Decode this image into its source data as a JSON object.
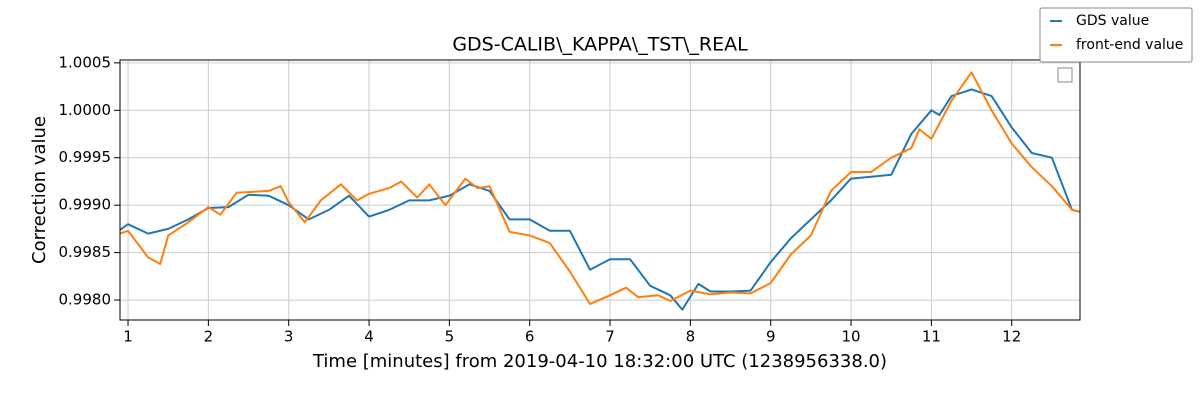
{
  "chart_data": {
    "type": "line",
    "title": "GDS-CALIB\\_KAPPA\\_TST\\_REAL",
    "x_label": "Time [minutes] from 2019-04-10 18:32:00 UTC (1238956338.0)",
    "y_label": "Correction value",
    "xlim": [
      0.9,
      12.85
    ],
    "ylim": [
      0.99779,
      1.00053
    ],
    "xticks": [
      1,
      2,
      3,
      4,
      5,
      6,
      7,
      8,
      9,
      10,
      11,
      12
    ],
    "yticks": [
      {
        "value": 0.998,
        "label": "0.9980"
      },
      0.9985,
      {
        "value": 0.999,
        "label": "0.9990"
      },
      0.9995,
      {
        "value": 1,
        "label": "1.0000"
      },
      1.0005
    ],
    "grid": true,
    "legend": "upper right",
    "series": [
      {
        "name": "GDS value",
        "color": "#1f77b4",
        "x": [
          0.9,
          1.0,
          1.25,
          1.5,
          1.75,
          2.0,
          2.25,
          2.5,
          2.75,
          3.0,
          3.25,
          3.5,
          3.75,
          4.0,
          4.25,
          4.5,
          4.75,
          5.0,
          5.25,
          5.5,
          5.75,
          6.0,
          6.25,
          6.5,
          6.75,
          7.0,
          7.25,
          7.5,
          7.75,
          7.9,
          8.1,
          8.25,
          8.5,
          8.75,
          9.0,
          9.25,
          9.5,
          9.75,
          10.0,
          10.25,
          10.5,
          10.75,
          11.0,
          11.1,
          11.25,
          11.5,
          11.75,
          12.0,
          12.25,
          12.5,
          12.75,
          12.85
        ],
        "values": [
          0.99874,
          0.9988,
          0.9987,
          0.99875,
          0.99885,
          0.99897,
          0.99898,
          0.99911,
          0.9991,
          0.999,
          0.99885,
          0.99895,
          0.9991,
          0.99888,
          0.99895,
          0.99905,
          0.99905,
          0.9991,
          0.99922,
          0.99915,
          0.99885,
          0.99885,
          0.99873,
          0.99873,
          0.99832,
          0.99843,
          0.99843,
          0.99815,
          0.99805,
          0.9979,
          0.99817,
          0.99809,
          0.99809,
          0.9981,
          0.9984,
          0.99865,
          0.99885,
          0.99905,
          0.99928,
          0.9993,
          0.99932,
          0.99975,
          1.0,
          0.99995,
          1.00015,
          1.00022,
          1.00015,
          0.99982,
          0.99955,
          0.9995,
          0.99895,
          0.99893
        ]
      },
      {
        "name": "front-end value",
        "color": "#ff7f0e",
        "x": [
          0.9,
          1.0,
          1.25,
          1.4,
          1.5,
          1.75,
          2.0,
          2.15,
          2.35,
          2.75,
          2.9,
          3.0,
          3.2,
          3.4,
          3.65,
          3.85,
          4.0,
          4.25,
          4.4,
          4.6,
          4.75,
          4.95,
          5.2,
          5.35,
          5.5,
          5.75,
          6.0,
          6.25,
          6.5,
          6.75,
          7.0,
          7.2,
          7.35,
          7.6,
          7.75,
          8.0,
          8.25,
          8.5,
          8.75,
          9.0,
          9.25,
          9.5,
          9.75,
          10.0,
          10.25,
          10.5,
          10.75,
          10.85,
          11.0,
          11.25,
          11.5,
          11.75,
          12.0,
          12.25,
          12.5,
          12.75,
          12.85
        ],
        "values": [
          0.9987,
          0.99873,
          0.99845,
          0.99838,
          0.99868,
          0.99882,
          0.99898,
          0.9989,
          0.99913,
          0.99915,
          0.9992,
          0.99903,
          0.99882,
          0.99905,
          0.99922,
          0.99905,
          0.99912,
          0.99918,
          0.99925,
          0.99908,
          0.99922,
          0.999,
          0.99928,
          0.99918,
          0.9992,
          0.99872,
          0.99868,
          0.9986,
          0.9983,
          0.99796,
          0.99805,
          0.99813,
          0.99803,
          0.99805,
          0.99799,
          0.9981,
          0.99806,
          0.99808,
          0.99807,
          0.99818,
          0.99848,
          0.99868,
          0.99915,
          0.99935,
          0.99935,
          0.9995,
          0.9996,
          0.9998,
          0.9997,
          1.0001,
          1.0004,
          1.0,
          0.99965,
          0.9994,
          0.9992,
          0.99895,
          0.99893
        ]
      }
    ]
  }
}
